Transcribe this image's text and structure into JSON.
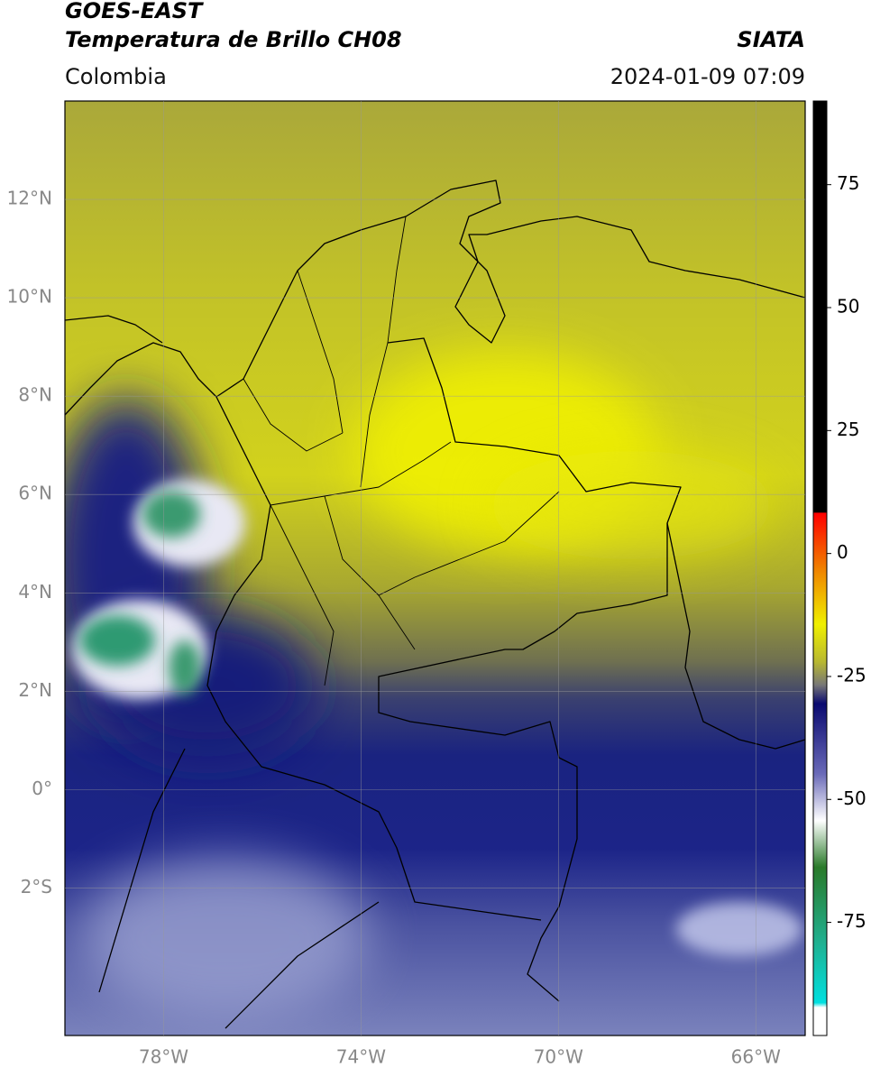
{
  "header": {
    "title": "GOES-EAST",
    "subtitle": "Temperatura de Brillo CH08",
    "region": "Colombia",
    "brand": "SIATA",
    "datetime": "2024-01-09 07:09"
  },
  "map": {
    "lonlim": [
      -80,
      -65
    ],
    "latlim": [
      -5,
      14
    ],
    "lon_ticks": [
      {
        "value": -78,
        "label": "78°W"
      },
      {
        "value": -74,
        "label": "74°W"
      },
      {
        "value": -70,
        "label": "70°W"
      },
      {
        "value": -66,
        "label": "66°W"
      }
    ],
    "lat_ticks": [
      {
        "value": 12,
        "label": "12°N"
      },
      {
        "value": 10,
        "label": "10°N"
      },
      {
        "value": 8,
        "label": "8°N"
      },
      {
        "value": 6,
        "label": "6°N"
      },
      {
        "value": 4,
        "label": "4°N"
      },
      {
        "value": 2,
        "label": "2°N"
      },
      {
        "value": 0,
        "label": "0°"
      },
      {
        "value": -2,
        "label": "2°S"
      }
    ],
    "grid": true
  },
  "colorbar": {
    "lim": [
      -98,
      92
    ],
    "ticks": [
      75,
      50,
      25,
      0,
      -25,
      -50,
      -75
    ]
  }
}
